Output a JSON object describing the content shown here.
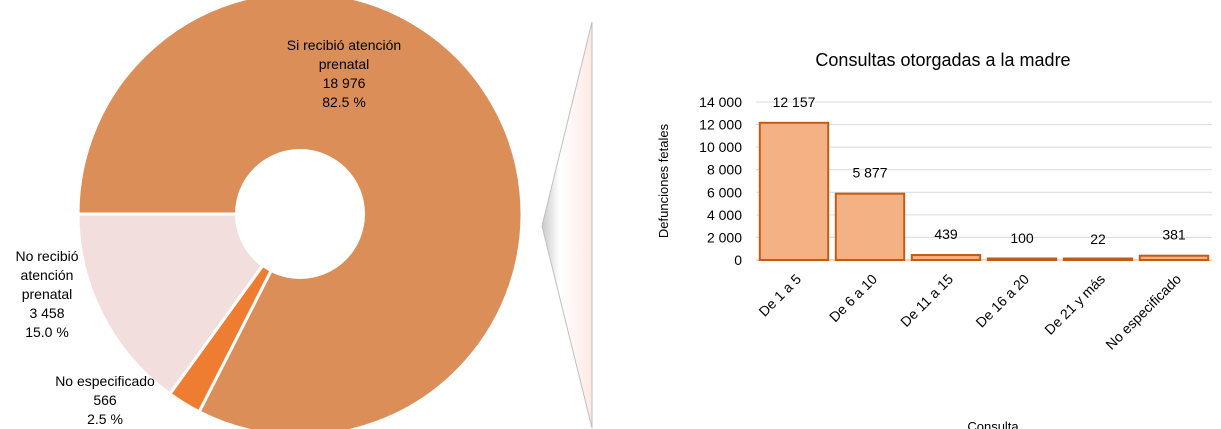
{
  "chart_data": [
    {
      "type": "pie",
      "title": "",
      "slices": [
        {
          "label_lines": [
            "Si recibió atención",
            "prenatal"
          ],
          "value": 18976,
          "value_text": "18 976",
          "percent": 82.5,
          "percent_text": "82.5 %",
          "color": "#DC8E59"
        },
        {
          "label_lines": [
            "No especificado"
          ],
          "value": 566,
          "value_text": "566",
          "percent": 2.5,
          "percent_text": "2.5 %",
          "color": "#EE7D31"
        },
        {
          "label_lines": [
            "No recibió",
            "atención",
            "prenatal"
          ],
          "value": 3458,
          "value_text": "3 458",
          "percent": 15.0,
          "percent_text": "15.0 %",
          "color": "#F2DFDD"
        }
      ]
    },
    {
      "type": "bar",
      "title": "Consultas otorgadas a la madre",
      "xlabel": "Consulta",
      "ylabel": "Defunciones fetales",
      "categories": [
        "De 1 a 5",
        "De 6 a 10",
        "De 11 a 15",
        "De 16 a 20",
        "De 21 y más",
        "No especificado"
      ],
      "values": [
        12157,
        5877,
        439,
        100,
        22,
        381
      ],
      "value_labels": [
        "12 157",
        "5 877",
        "439",
        "100",
        "22",
        "381"
      ],
      "ylim": [
        0,
        14000
      ],
      "yticks": [
        0,
        2000,
        4000,
        6000,
        8000,
        10000,
        12000,
        14000
      ],
      "ytick_labels": [
        "0",
        "2 000",
        "4 000",
        "6 000",
        "8 000",
        "10 000",
        "12 000",
        "14 000"
      ],
      "grid": true,
      "bar_fill": "#F4B183",
      "bar_stroke": "#C55A11"
    }
  ]
}
